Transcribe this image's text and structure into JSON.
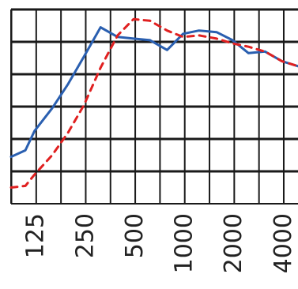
{
  "chart_data": {
    "type": "line",
    "title": "",
    "xlabel": "",
    "ylabel": "",
    "x_scale": "log2",
    "grid": true,
    "legend": "none",
    "xlim": [
      90,
      5000
    ],
    "ylim": [
      0,
      6
    ],
    "x_ticks": [
      125,
      250,
      500,
      1000,
      2000,
      4000
    ],
    "x_tick_labels": [
      "125",
      "250",
      "500",
      "1000",
      "2000",
      "4000"
    ],
    "series": [
      {
        "color": "#2a5fb0",
        "style": "solid",
        "x": [
          90,
          110,
          125,
          160,
          200,
          250,
          315,
          400,
          500,
          630,
          800,
          1000,
          1250,
          1600,
          2000,
          2500,
          3150,
          4000,
          5000
        ],
        "y": [
          1.45,
          1.65,
          2.25,
          2.95,
          3.7,
          4.55,
          5.45,
          5.15,
          5.1,
          5.05,
          4.75,
          5.25,
          5.35,
          5.3,
          5.05,
          4.65,
          4.7,
          4.4,
          4.25
        ]
      },
      {
        "color": "#e02020",
        "style": "dashed",
        "x": [
          90,
          110,
          125,
          160,
          200,
          250,
          315,
          400,
          500,
          630,
          800,
          1000,
          1250,
          1600,
          2000,
          2500,
          3150,
          4000,
          5000
        ],
        "y": [
          0.5,
          0.55,
          0.9,
          1.5,
          2.2,
          3.05,
          4.2,
          5.2,
          5.7,
          5.65,
          5.35,
          5.15,
          5.2,
          5.1,
          4.95,
          4.85,
          4.7,
          4.4,
          4.25
        ]
      }
    ]
  }
}
